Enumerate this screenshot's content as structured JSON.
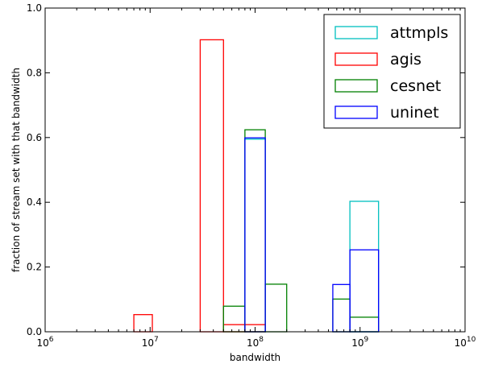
{
  "chart_data": {
    "type": "bar",
    "xlabel": "bandwidth",
    "ylabel": "fraction of stream set with that bandwidth",
    "xscale": "log",
    "xlim": [
      1000000,
      10000000000
    ],
    "ylim": [
      0,
      1.0
    ],
    "x_ticks": [
      {
        "value": 1000000,
        "base": "10",
        "exp": "6"
      },
      {
        "value": 10000000,
        "base": "10",
        "exp": "7"
      },
      {
        "value": 100000000,
        "base": "10",
        "exp": "8"
      },
      {
        "value": 1000000000,
        "base": "10",
        "exp": "9"
      },
      {
        "value": 10000000000,
        "base": "10",
        "exp": "10"
      }
    ],
    "y_ticks": [
      "0.0",
      "0.2",
      "0.4",
      "0.6",
      "0.8",
      "1.0"
    ],
    "legend_position": "top-right",
    "grid": false,
    "series": [
      {
        "name": "attmpls",
        "color": "#00bfbf",
        "bars": [
          {
            "x0": 80000000,
            "x1": 125000000,
            "value": 0.595
          },
          {
            "x0": 800000000,
            "x1": 1500000000,
            "value": 0.403
          }
        ]
      },
      {
        "name": "agis",
        "color": "#ff0000",
        "bars": [
          {
            "x0": 7000000,
            "x1": 10500000,
            "value": 0.053
          },
          {
            "x0": 30000000,
            "x1": 50000000,
            "value": 0.902
          },
          {
            "x0": 50000000,
            "x1": 80000000,
            "value": 0.022
          },
          {
            "x0": 80000000,
            "x1": 125000000,
            "value": 0.022
          }
        ]
      },
      {
        "name": "cesnet",
        "color": "#008000",
        "bars": [
          {
            "x0": 50000000,
            "x1": 80000000,
            "value": 0.079
          },
          {
            "x0": 80000000,
            "x1": 125000000,
            "value": 0.624
          },
          {
            "x0": 125000000,
            "x1": 200000000,
            "value": 0.147
          },
          {
            "x0": 550000000,
            "x1": 800000000,
            "value": 0.101
          },
          {
            "x0": 800000000,
            "x1": 1500000000,
            "value": 0.045
          }
        ]
      },
      {
        "name": "uninet",
        "color": "#0000ff",
        "bars": [
          {
            "x0": 80000000,
            "x1": 125000000,
            "value": 0.599
          },
          {
            "x0": 550000000,
            "x1": 800000000,
            "value": 0.146
          },
          {
            "x0": 800000000,
            "x1": 1500000000,
            "value": 0.253
          }
        ]
      }
    ]
  }
}
